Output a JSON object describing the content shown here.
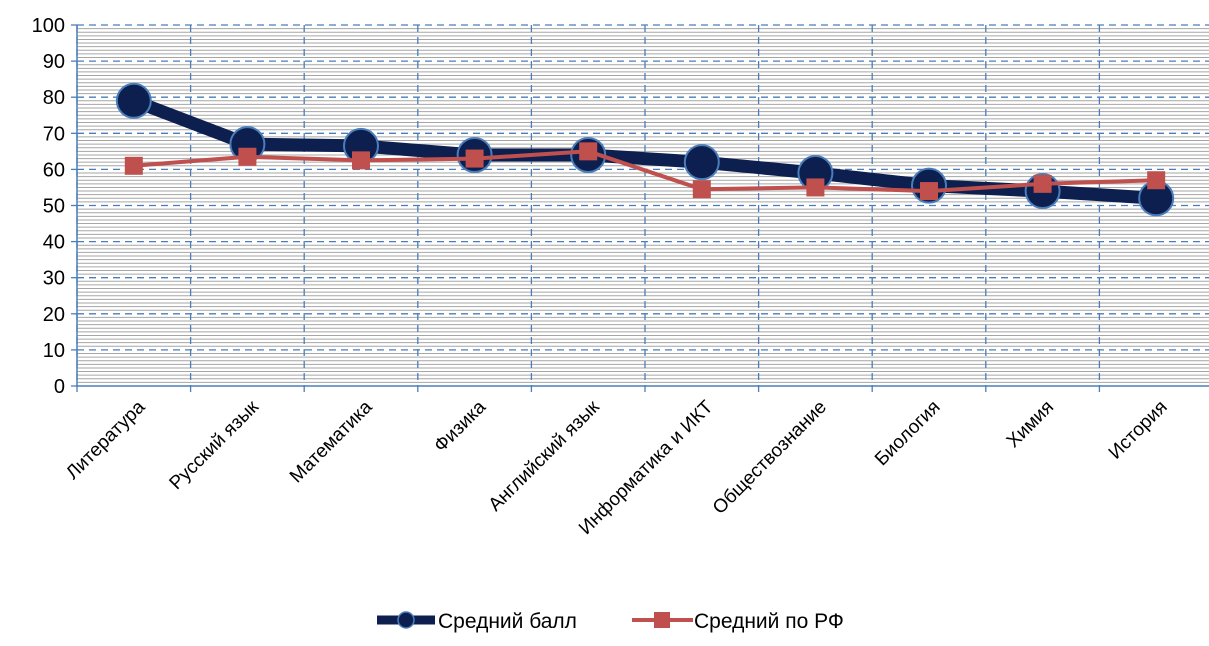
{
  "chart_data": {
    "type": "line",
    "title": "",
    "xlabel": "",
    "ylabel": "",
    "categories": [
      "Литература",
      "Русский язык",
      "Математика",
      "Физика",
      "Английский язык",
      "Информатика и ИКТ",
      "Обществознание",
      "Биология",
      "Химия",
      "История"
    ],
    "ylim": [
      0,
      100
    ],
    "yticks": [
      0,
      10,
      20,
      30,
      40,
      50,
      60,
      70,
      80,
      90,
      100
    ],
    "grid": true,
    "legend_position": "bottom",
    "series": [
      {
        "name": "Средний балл",
        "values": [
          79,
          67,
          66.5,
          64,
          64,
          62,
          59,
          55.5,
          54,
          52
        ],
        "color": "#0c1f4f",
        "marker": "circle"
      },
      {
        "name": "Средний по РФ",
        "values": [
          61,
          63.5,
          62.5,
          63,
          65,
          54.5,
          55,
          54,
          56,
          57
        ],
        "color": "#c0504d",
        "marker": "square"
      }
    ]
  }
}
